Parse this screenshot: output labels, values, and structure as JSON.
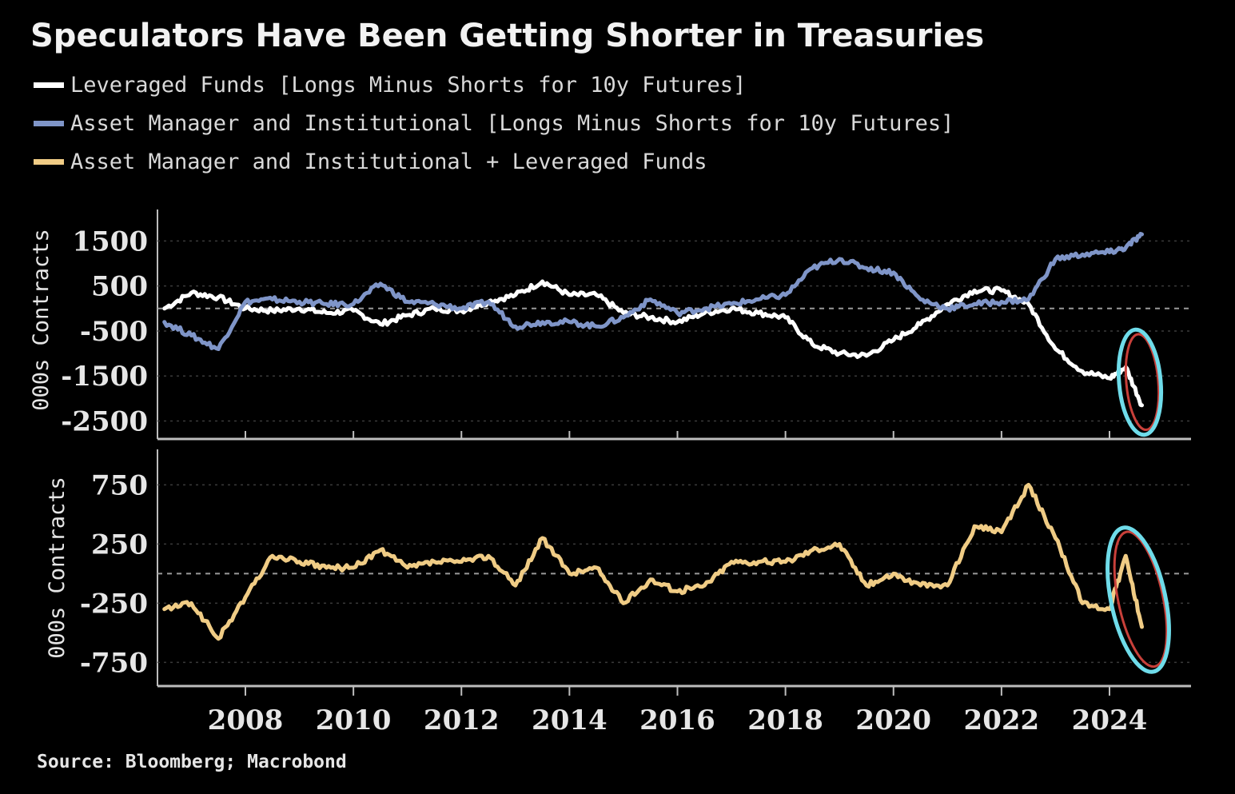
{
  "title": "Speculators Have Been Getting Shorter in Treasuries",
  "source": "Source: Bloomberg; Macrobond",
  "colors": {
    "background": "#000000",
    "leveraged": "#ffffff",
    "asset_manager": "#7f95c8",
    "combined": "#f0cc85",
    "highlight_ring": "#6fdcea",
    "highlight_inner": "#c8403a"
  },
  "legend": [
    {
      "label": "Leveraged Funds [Longs Minus Shorts for 10y Futures]",
      "color": "#ffffff"
    },
    {
      "label": "Asset Manager and Institutional [Longs Minus Shorts for 10y Futures]",
      "color": "#7f95c8"
    },
    {
      "label": "Asset Manager and Institutional + Leveraged Funds",
      "color": "#f0cc85"
    }
  ],
  "chart_data": [
    {
      "type": "line",
      "ylabel": "000s Contracts",
      "ylim": [
        -2900,
        2200
      ],
      "yticks": [
        1500,
        500,
        -500,
        -1500,
        -2500
      ],
      "x_ticks": [
        "2008",
        "2010",
        "2012",
        "2014",
        "2016",
        "2018",
        "2020",
        "2022",
        "2024"
      ],
      "zero_line": true,
      "grid": true,
      "series": [
        {
          "name": "Leveraged Funds [Longs Minus Shorts for 10y Futures]",
          "color": "#ffffff",
          "x": [
            2006.5,
            2007.0,
            2007.5,
            2008.0,
            2008.5,
            2009.0,
            2009.5,
            2010.0,
            2010.5,
            2011.0,
            2011.5,
            2012.0,
            2012.5,
            2013.0,
            2013.5,
            2014.0,
            2014.5,
            2015.0,
            2015.5,
            2016.0,
            2016.5,
            2017.0,
            2017.5,
            2018.0,
            2018.5,
            2019.0,
            2019.5,
            2020.0,
            2020.5,
            2021.0,
            2021.5,
            2022.0,
            2022.5,
            2023.0,
            2023.5,
            2024.0,
            2024.3,
            2024.6
          ],
          "y": [
            0,
            350,
            250,
            0,
            -50,
            0,
            -100,
            -50,
            -350,
            -150,
            0,
            -50,
            150,
            300,
            600,
            300,
            300,
            -100,
            -200,
            -300,
            -100,
            0,
            -100,
            -200,
            -800,
            -1000,
            -1050,
            -700,
            -350,
            100,
            400,
            400,
            100,
            -900,
            -1400,
            -1550,
            -1300,
            -2150
          ]
        },
        {
          "name": "Asset Manager and Institutional [Longs Minus Shorts for 10y Futures]",
          "color": "#7f95c8",
          "x": [
            2006.5,
            2007.0,
            2007.5,
            2008.0,
            2008.5,
            2009.0,
            2009.5,
            2010.0,
            2010.5,
            2011.0,
            2011.5,
            2012.0,
            2012.5,
            2013.0,
            2013.5,
            2014.0,
            2014.5,
            2015.0,
            2015.5,
            2016.0,
            2016.5,
            2017.0,
            2017.5,
            2018.0,
            2018.5,
            2019.0,
            2019.5,
            2020.0,
            2020.5,
            2021.0,
            2021.5,
            2022.0,
            2022.5,
            2023.0,
            2023.5,
            2024.0,
            2024.3,
            2024.6
          ],
          "y": [
            -300,
            -600,
            -900,
            150,
            200,
            150,
            100,
            100,
            550,
            150,
            100,
            0,
            150,
            -400,
            -300,
            -300,
            -400,
            -200,
            200,
            -100,
            0,
            100,
            200,
            300,
            900,
            1100,
            900,
            800,
            200,
            0,
            100,
            150,
            200,
            1100,
            1200,
            1250,
            1350,
            1650
          ]
        }
      ]
    },
    {
      "type": "line",
      "ylabel": "000s Contracts",
      "ylim": [
        -950,
        1050
      ],
      "yticks": [
        750,
        250,
        -250,
        -750
      ],
      "x_ticks": [
        "2008",
        "2010",
        "2012",
        "2014",
        "2016",
        "2018",
        "2020",
        "2022",
        "2024"
      ],
      "zero_line": true,
      "grid": true,
      "series": [
        {
          "name": "Asset Manager and Institutional + Leveraged Funds",
          "color": "#f0cc85",
          "x": [
            2006.5,
            2007.0,
            2007.5,
            2008.0,
            2008.5,
            2009.0,
            2009.5,
            2010.0,
            2010.5,
            2011.0,
            2011.5,
            2012.0,
            2012.5,
            2013.0,
            2013.5,
            2014.0,
            2014.5,
            2015.0,
            2015.5,
            2016.0,
            2016.5,
            2017.0,
            2017.5,
            2018.0,
            2018.5,
            2019.0,
            2019.5,
            2020.0,
            2020.5,
            2021.0,
            2021.5,
            2022.0,
            2022.5,
            2023.0,
            2023.5,
            2024.0,
            2024.3,
            2024.6
          ],
          "y": [
            -300,
            -250,
            -550,
            -200,
            150,
            100,
            50,
            50,
            200,
            50,
            100,
            100,
            150,
            -100,
            300,
            0,
            50,
            -250,
            -50,
            -150,
            -100,
            100,
            100,
            100,
            200,
            250,
            -100,
            0,
            -100,
            -100,
            400,
            350,
            750,
            300,
            -250,
            -300,
            150,
            -450
          ]
        }
      ]
    }
  ]
}
